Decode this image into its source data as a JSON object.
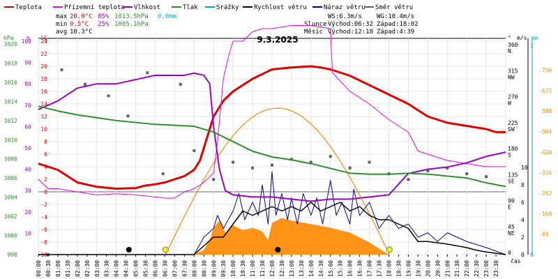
{
  "legend": [
    {
      "label": "Teplota",
      "color": "#e00000"
    },
    {
      "label": "Přízemní teplota",
      "color": "#ee00ee"
    },
    {
      "label": "Vlhkost",
      "color": "#9900cc"
    },
    {
      "label": "Tlak",
      "color": "#2a8f2a"
    },
    {
      "label": "Srážky",
      "color": "#00aacc"
    },
    {
      "label": "Rychlost větru",
      "color": "#000000"
    },
    {
      "label": "Náraz větru",
      "color": "#000099"
    },
    {
      "label": "Směr větru",
      "color": "#606060"
    }
  ],
  "stats": {
    "max_label": "max",
    "max_temp": "20.0°C",
    "max_hum": "85%",
    "max_press": "1013.5hPa",
    "max_rain": "0.0mm",
    "min_label": "min",
    "min_temp": "0.5°C",
    "min_hum": "25%",
    "min_press": "1005.1hPa",
    "avg_label": "avg",
    "avg_temp": "10.3°C"
  },
  "wind": {
    "ws": "WS:6.3m/s",
    "wg": "WG:10.4m/s"
  },
  "sun": {
    "label": "Slunce",
    "rise": "Východ:06:32",
    "set": "Západ:18:02"
  },
  "moon": {
    "label": "Měsíc",
    "rise": "Východ:12:18",
    "set": "Západ:4:39"
  },
  "colors": {
    "temp": "#e00000",
    "ground": "#ee00ee",
    "humidity": "#9900cc",
    "pressure": "#2a8f2a",
    "rain": "#00aacc",
    "wind": "#000000",
    "gust": "#000099",
    "dir": "#606060",
    "solar": "#ff8800",
    "solar_arc": "#ff8800"
  },
  "chart_data": {
    "type": "line",
    "title": "9.3.2025",
    "x_axis_label": "čas",
    "x_ticks": [
      "00:00",
      "00:30",
      "01:00",
      "01:30",
      "02:00",
      "02:30",
      "03:00",
      "03:30",
      "04:00",
      "04:30",
      "05:00",
      "05:30",
      "06:00",
      "06:30",
      "07:00",
      "07:30",
      "08:00",
      "08:30",
      "09:00",
      "09:30",
      "10:00",
      "10:30",
      "11:00",
      "11:30",
      "12:00",
      "12:30",
      "13:00",
      "13:30",
      "14:00",
      "14:30",
      "15:00",
      "15:30",
      "16:00",
      "16:30",
      "17:00",
      "17:30",
      "18:00",
      "18:30",
      "19:00",
      "19:30",
      "20:00",
      "20:30",
      "21:00",
      "21:30",
      "22:00",
      "22:30",
      "23:00",
      "23:30"
    ],
    "axes": {
      "pressure_hpa": {
        "label": "hPa",
        "ticks": [
          998,
          1000,
          1002,
          1004,
          1006,
          1008,
          1010,
          1012,
          1014,
          1016,
          1018,
          1020
        ]
      },
      "humidity_pct": {
        "label": "%",
        "ticks": [
          10,
          20,
          30,
          40,
          50,
          60,
          70,
          80,
          90,
          100
        ]
      },
      "temperature_c": {
        "label": "°C",
        "ticks": [
          -10,
          -8,
          -6,
          -4,
          -2,
          0,
          2,
          4,
          6,
          8,
          10,
          12,
          14,
          16,
          18,
          20,
          22,
          24
        ]
      },
      "wind_dir_deg": {
        "label": "°",
        "ticks": [
          0,
          45,
          90,
          135,
          180,
          225,
          270,
          315,
          360
        ],
        "names": [
          "",
          "NE",
          "E",
          "SE",
          "S",
          "SW",
          "W",
          "NW",
          "N"
        ]
      },
      "wind_ms": {
        "label": "m/s",
        "ticks": [
          0,
          2,
          4,
          6,
          8,
          10
        ]
      },
      "rain_mm": {
        "label": "mm",
        "ticks": [
          0,
          1
        ]
      },
      "solar_wm2": {
        "label": "",
        "ticks": [
          84,
          168,
          252,
          336,
          420,
          504,
          588,
          672,
          756
        ]
      }
    },
    "series": [
      {
        "key": "temperature",
        "name": "Teplota",
        "color": "#e00000",
        "axis": "temperature_c",
        "x": [
          0,
          0.5,
          1,
          1.5,
          2,
          3,
          4,
          5,
          5.5,
          6,
          6.5,
          7,
          7.5,
          8,
          8.3,
          8.6,
          9,
          9.5,
          10,
          11,
          12,
          13,
          14,
          14.5,
          15,
          16,
          17,
          18,
          19,
          20,
          20.5,
          21,
          22,
          23,
          23.5,
          24
        ],
        "values": [
          4.5,
          4,
          3.5,
          2.5,
          1.5,
          0.8,
          0.5,
          0.6,
          1,
          1.2,
          1.5,
          2,
          2.5,
          3.5,
          5,
          8,
          12,
          14.5,
          16,
          18,
          19.5,
          19.8,
          20,
          19.8,
          19.5,
          18.5,
          17,
          15.5,
          14,
          12,
          11.5,
          11,
          10.5,
          10,
          9.5,
          9.5
        ]
      },
      {
        "key": "ground_temp",
        "name": "Přízemní teplota",
        "color": "#ee00ee",
        "axis": "temperature_c",
        "x": [
          0,
          0.5,
          1,
          2,
          3,
          4,
          5,
          6,
          6.5,
          7,
          7.5,
          8,
          8.5,
          9,
          9.2,
          9.5,
          9.8,
          10,
          10.5,
          11,
          11.5,
          12,
          13,
          14,
          15,
          15.1,
          16,
          17,
          18,
          19,
          19.5,
          20,
          21,
          22,
          23,
          24
        ],
        "values": [
          2,
          0.5,
          0.5,
          0,
          -0.5,
          -0.3,
          -0.5,
          -0.8,
          -1,
          -1,
          0,
          0.5,
          1.5,
          3,
          8,
          18,
          22,
          24,
          24,
          25.5,
          26,
          26,
          26.5,
          26.5,
          26,
          19,
          16,
          14,
          11.5,
          9.5,
          6.5,
          6,
          5,
          4.5,
          4,
          4
        ]
      },
      {
        "key": "humidity",
        "name": "Vlhkost",
        "color": "#9900cc",
        "axis": "humidity_pct",
        "x": [
          0,
          1,
          2,
          3,
          4,
          5,
          6,
          7,
          7.5,
          8,
          8.5,
          8.8,
          9,
          9.3,
          9.6,
          10,
          11,
          12,
          13,
          14,
          15,
          16,
          17,
          18,
          19,
          20,
          21,
          22,
          23,
          24
        ],
        "values": [
          68,
          72,
          78,
          80,
          80,
          82,
          84,
          84,
          84,
          85,
          84,
          80,
          60,
          40,
          30,
          28,
          27,
          27,
          26,
          25,
          26,
          26,
          27,
          28,
          38,
          40,
          41,
          43,
          46,
          48
        ]
      },
      {
        "key": "pressure",
        "name": "Tlak",
        "color": "#2a8f2a",
        "axis": "pressure_hpa",
        "x": [
          0,
          1,
          2,
          3,
          4,
          5,
          6,
          7,
          8,
          8.5,
          9,
          10,
          11,
          12,
          13,
          14,
          15,
          16,
          17,
          18,
          19,
          20,
          21,
          22,
          23,
          24
        ],
        "values": [
          1013.5,
          1013,
          1012.6,
          1012.3,
          1012,
          1011.8,
          1011.6,
          1011.5,
          1011.4,
          1011.1,
          1010.8,
          1009.8,
          1008.8,
          1008.2,
          1007.9,
          1007.5,
          1007,
          1006.5,
          1006.4,
          1006.4,
          1006.5,
          1006.4,
          1006.2,
          1006,
          1005.5,
          1005.1
        ]
      }
    ],
    "wind_speed": {
      "axis": "wind_ms",
      "x": [
        0,
        2,
        4,
        6,
        8,
        8.5,
        9,
        9.5,
        10,
        10.5,
        11,
        11.5,
        12,
        12.5,
        13,
        13.5,
        14,
        14.5,
        15,
        15.5,
        16,
        16.5,
        17,
        17.5,
        18,
        18.5,
        19,
        19.5,
        20,
        21,
        22,
        22.5,
        23,
        24
      ],
      "values": [
        0,
        0,
        0,
        0,
        0,
        1,
        2,
        2,
        3.5,
        5,
        4.5,
        5,
        5.5,
        5,
        5.5,
        5,
        6,
        5,
        5.5,
        6,
        5,
        5.5,
        4.5,
        4,
        4,
        3.5,
        3,
        1.5,
        1.5,
        1.2,
        0.8,
        0.5,
        0.3,
        0
      ]
    },
    "wind_gust": {
      "axis": "wind_ms",
      "x": [
        0,
        8,
        8.5,
        9,
        9.2,
        9.5,
        10,
        10.3,
        10.6,
        11,
        11.3,
        11.5,
        11.8,
        12,
        12.2,
        12.5,
        12.8,
        13,
        13.3,
        13.6,
        14,
        14.3,
        14.6,
        15,
        15.3,
        15.6,
        16,
        16.2,
        16.5,
        17,
        17.5,
        18,
        18.5,
        19,
        19.5,
        20,
        20.5,
        21,
        22,
        23,
        24
      ],
      "values": [
        0,
        0,
        2,
        3,
        4.5,
        3,
        5,
        7,
        4,
        6,
        4.5,
        8,
        3.5,
        9.5,
        4.5,
        7,
        4,
        6.5,
        3.5,
        7,
        4.5,
        6.5,
        3.5,
        8.5,
        4.5,
        6,
        3.5,
        7.5,
        4.5,
        6,
        3,
        4.5,
        3,
        3.5,
        2,
        2.5,
        1.5,
        2.5,
        1.5,
        0.8,
        0
      ]
    },
    "wind_direction_samples_deg": [
      {
        "t": 0.5,
        "v": 0
      },
      {
        "t": 1.2,
        "v": 320
      },
      {
        "t": 2.4,
        "v": 295
      },
      {
        "t": 3.6,
        "v": 275
      },
      {
        "t": 4.6,
        "v": 240
      },
      {
        "t": 5.6,
        "v": 315
      },
      {
        "t": 6.4,
        "v": 140
      },
      {
        "t": 7.3,
        "v": 295
      },
      {
        "t": 8,
        "v": 180
      },
      {
        "t": 9,
        "v": 130
      },
      {
        "t": 10,
        "v": 160
      },
      {
        "t": 11,
        "v": 150
      },
      {
        "t": 12,
        "v": 155
      },
      {
        "t": 13,
        "v": 165
      },
      {
        "t": 14,
        "v": 160
      },
      {
        "t": 15,
        "v": 170
      },
      {
        "t": 16,
        "v": 150
      },
      {
        "t": 17,
        "v": 160
      },
      {
        "t": 18,
        "v": 140
      },
      {
        "t": 19,
        "v": 130
      },
      {
        "t": 20,
        "v": 145
      },
      {
        "t": 21,
        "v": 150
      },
      {
        "t": 22,
        "v": 140
      },
      {
        "t": 23,
        "v": 135
      }
    ],
    "solar_radiation": {
      "axis": "solar_wm2",
      "x": [
        0,
        8,
        8.5,
        8.8,
        9,
        9.3,
        9.6,
        10,
        10.5,
        11,
        11.5,
        11.8,
        12,
        12.5,
        13,
        14,
        15,
        16,
        16.5,
        17,
        17.5,
        18,
        24
      ],
      "values": [
        0,
        0,
        20,
        60,
        110,
        140,
        90,
        120,
        100,
        110,
        95,
        60,
        130,
        150,
        140,
        125,
        110,
        90,
        70,
        50,
        25,
        0,
        0
      ]
    },
    "solar_arc_peak_wm2": 600,
    "sun_events": [
      "06:32",
      "18:02"
    ],
    "moon_events": [
      "04:39",
      "12:18"
    ]
  }
}
